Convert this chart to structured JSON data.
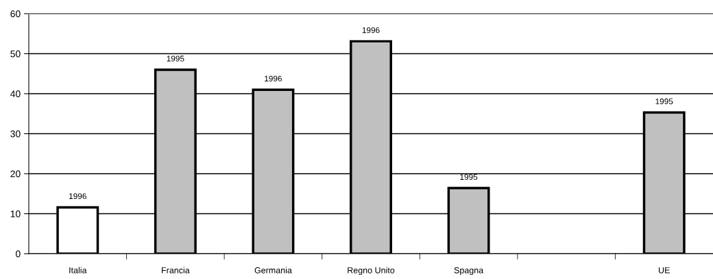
{
  "chart_data": {
    "type": "bar",
    "categories": [
      "Italia",
      "Francia",
      "Germania",
      "Regno Unito",
      "Spagna",
      null,
      "UE"
    ],
    "values": [
      11.6,
      46.0,
      41.0,
      53.1,
      16.4,
      null,
      35.3
    ],
    "colors": [
      "#ffffff",
      "#c0c0c0",
      "#c0c0c0",
      "#c0c0c0",
      "#c0c0c0",
      "#c0c0c0",
      "#c0c0c0"
    ],
    "annotations": [
      {
        "text": "1996",
        "x": "Italia",
        "y": 11.6
      },
      {
        "text": "1995",
        "x": "Francia",
        "y": 46.0
      },
      {
        "text": "1996",
        "x": "Germania",
        "y": 41.0
      },
      {
        "text": "1996",
        "x": "Regno Unito",
        "y": 53.1
      },
      {
        "text": "1995",
        "x": "Spagna",
        "y": 16.4
      },
      {
        "text": "1995",
        "x": "UE",
        "y": 35.3
      }
    ],
    "ylim": [
      0,
      60
    ],
    "yticks": [
      0,
      10,
      20,
      30,
      40,
      50,
      60
    ],
    "grid": "y"
  }
}
